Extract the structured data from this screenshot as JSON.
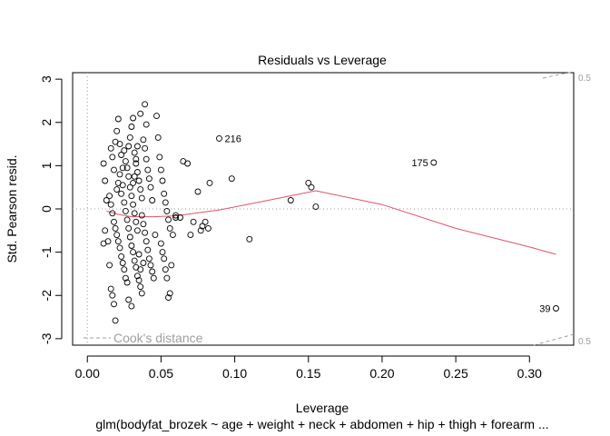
{
  "chart_data": {
    "type": "scatter",
    "title": "Residuals vs Leverage",
    "xlabel": "Leverage",
    "ylabel": "Std. Pearson resid.",
    "subtitle": "glm(bodyfat_brozek ~ age + weight + neck + abdomen + hip + thigh + forearm ...",
    "xlim": [
      -0.01,
      0.33
    ],
    "ylim": [
      -3.15,
      3.15
    ],
    "x_ticks": [
      0.0,
      0.05,
      0.1,
      0.15,
      0.2,
      0.25,
      0.3
    ],
    "x_tick_labels": [
      "0.00",
      "0.05",
      "0.10",
      "0.15",
      "0.20",
      "0.25",
      "0.30"
    ],
    "y_ticks": [
      -3,
      -2,
      -1,
      0,
      1,
      2,
      3
    ],
    "y_tick_labels": [
      "-3",
      "-2",
      "-1",
      "0",
      "1",
      "2",
      "3"
    ],
    "grid": false,
    "reference_lines": {
      "y": 0,
      "x": 0,
      "style": "dotted",
      "color": "#9e9e9e"
    },
    "cooks_distance": {
      "legend_label": "Cook's distance",
      "legend_position": "bottom-left",
      "level_labels": [
        "0.5",
        "0.5"
      ],
      "color": "#9e9e9e"
    },
    "smoother": {
      "color": "#df536b",
      "points": [
        [
          0.013,
          -0.05
        ],
        [
          0.02,
          -0.12
        ],
        [
          0.03,
          -0.18
        ],
        [
          0.045,
          -0.18
        ],
        [
          0.06,
          -0.16
        ],
        [
          0.09,
          -0.02
        ],
        [
          0.12,
          0.18
        ],
        [
          0.155,
          0.42
        ],
        [
          0.2,
          0.1
        ],
        [
          0.25,
          -0.45
        ],
        [
          0.3,
          -0.88
        ],
        [
          0.318,
          -1.05
        ]
      ]
    },
    "labeled_points": [
      {
        "label": "216",
        "x": 0.0895,
        "y": 1.63
      },
      {
        "label": "175",
        "x": 0.235,
        "y": 1.07
      },
      {
        "label": "39",
        "x": 0.318,
        "y": -2.3
      }
    ],
    "points": [
      [
        0.011,
        1.05
      ],
      [
        0.012,
        0.65
      ],
      [
        0.013,
        0.2
      ],
      [
        0.011,
        -0.8
      ],
      [
        0.012,
        -0.5
      ],
      [
        0.014,
        -0.75
      ],
      [
        0.015,
        -1.3
      ],
      [
        0.016,
        -1.85
      ],
      [
        0.017,
        -2.0
      ],
      [
        0.018,
        -2.2
      ],
      [
        0.019,
        -2.58
      ],
      [
        0.016,
        1.4
      ],
      [
        0.017,
        1.2
      ],
      [
        0.018,
        0.9
      ],
      [
        0.019,
        1.55
      ],
      [
        0.02,
        1.8
      ],
      [
        0.021,
        2.08
      ],
      [
        0.022,
        1.5
      ],
      [
        0.023,
        1.25
      ],
      [
        0.024,
        0.95
      ],
      [
        0.015,
        0.3
      ],
      [
        0.016,
        0.1
      ],
      [
        0.017,
        -0.1
      ],
      [
        0.018,
        -0.3
      ],
      [
        0.019,
        -0.45
      ],
      [
        0.02,
        0.45
      ],
      [
        0.021,
        0.6
      ],
      [
        0.022,
        0.8
      ],
      [
        0.023,
        0.35
      ],
      [
        0.024,
        0.55
      ],
      [
        0.02,
        -0.6
      ],
      [
        0.021,
        -0.75
      ],
      [
        0.022,
        -0.9
      ],
      [
        0.023,
        -1.1
      ],
      [
        0.024,
        -1.25
      ],
      [
        0.025,
        -1.4
      ],
      [
        0.026,
        -1.6
      ],
      [
        0.027,
        -1.7
      ],
      [
        0.028,
        -2.1
      ],
      [
        0.03,
        -2.25
      ],
      [
        0.025,
        1.35
      ],
      [
        0.026,
        1.1
      ],
      [
        0.027,
        0.95
      ],
      [
        0.028,
        0.75
      ],
      [
        0.029,
        0.5
      ],
      [
        0.03,
        0.3
      ],
      [
        0.031,
        0.1
      ],
      [
        0.032,
        -0.1
      ],
      [
        0.033,
        -0.3
      ],
      [
        0.034,
        -0.5
      ],
      [
        0.028,
        1.45
      ],
      [
        0.029,
        1.65
      ],
      [
        0.03,
        1.9
      ],
      [
        0.031,
        2.1
      ],
      [
        0.032,
        1.3
      ],
      [
        0.033,
        1.05
      ],
      [
        0.034,
        0.85
      ],
      [
        0.035,
        0.65
      ],
      [
        0.036,
        0.45
      ],
      [
        0.037,
        0.25
      ],
      [
        0.029,
        -0.65
      ],
      [
        0.03,
        -0.85
      ],
      [
        0.031,
        -1.0
      ],
      [
        0.032,
        -1.2
      ],
      [
        0.033,
        -1.35
      ],
      [
        0.034,
        -1.55
      ],
      [
        0.035,
        -1.65
      ],
      [
        0.036,
        -1.8
      ],
      [
        0.037,
        -1.95
      ],
      [
        0.038,
        -1.25
      ],
      [
        0.036,
        2.2
      ],
      [
        0.039,
        2.42
      ],
      [
        0.04,
        1.95
      ],
      [
        0.038,
        1.6
      ],
      [
        0.039,
        1.4
      ],
      [
        0.04,
        1.15
      ],
      [
        0.041,
        0.9
      ],
      [
        0.042,
        0.7
      ],
      [
        0.043,
        0.5
      ],
      [
        0.044,
        0.2
      ],
      [
        0.037,
        -0.15
      ],
      [
        0.038,
        -0.35
      ],
      [
        0.039,
        -0.55
      ],
      [
        0.04,
        -0.75
      ],
      [
        0.041,
        -0.95
      ],
      [
        0.042,
        -1.15
      ],
      [
        0.043,
        -1.3
      ],
      [
        0.044,
        -1.45
      ],
      [
        0.045,
        -1.6
      ],
      [
        0.046,
        -0.6
      ],
      [
        0.047,
        2.15
      ],
      [
        0.048,
        1.65
      ],
      [
        0.049,
        1.2
      ],
      [
        0.05,
        0.9
      ],
      [
        0.051,
        0.65
      ],
      [
        0.052,
        0.35
      ],
      [
        0.053,
        0.15
      ],
      [
        0.054,
        -0.05
      ],
      [
        0.055,
        -0.25
      ],
      [
        0.056,
        -0.45
      ],
      [
        0.05,
        -0.8
      ],
      [
        0.051,
        -1.0
      ],
      [
        0.052,
        -1.15
      ],
      [
        0.053,
        -1.4
      ],
      [
        0.054,
        -1.6
      ],
      [
        0.055,
        -2.05
      ],
      [
        0.056,
        -1.95
      ],
      [
        0.057,
        -1.3
      ],
      [
        0.058,
        -0.6
      ],
      [
        0.06,
        -0.2
      ],
      [
        0.025,
        0.15
      ],
      [
        0.026,
        -0.05
      ],
      [
        0.027,
        -0.25
      ],
      [
        0.028,
        -0.45
      ],
      [
        0.031,
        0.6
      ],
      [
        0.032,
        0.75
      ],
      [
        0.033,
        1.15
      ],
      [
        0.034,
        1.45
      ],
      [
        0.035,
        -1.05
      ],
      [
        0.036,
        -1.4
      ],
      [
        0.065,
        1.1
      ],
      [
        0.068,
        1.05
      ],
      [
        0.07,
        -0.6
      ],
      [
        0.072,
        -0.3
      ],
      [
        0.075,
        0.4
      ],
      [
        0.077,
        -0.5
      ],
      [
        0.078,
        -0.4
      ],
      [
        0.08,
        -0.3
      ],
      [
        0.082,
        -0.45
      ],
      [
        0.083,
        0.6
      ],
      [
        0.06,
        -0.15
      ],
      [
        0.063,
        -0.2
      ],
      [
        0.098,
        0.7
      ],
      [
        0.11,
        -0.7
      ],
      [
        0.138,
        0.2
      ],
      [
        0.15,
        0.6
      ],
      [
        0.152,
        0.5
      ],
      [
        0.155,
        0.05
      ],
      [
        0.0895,
        1.63
      ],
      [
        0.235,
        1.07
      ],
      [
        0.318,
        -2.3
      ]
    ]
  }
}
